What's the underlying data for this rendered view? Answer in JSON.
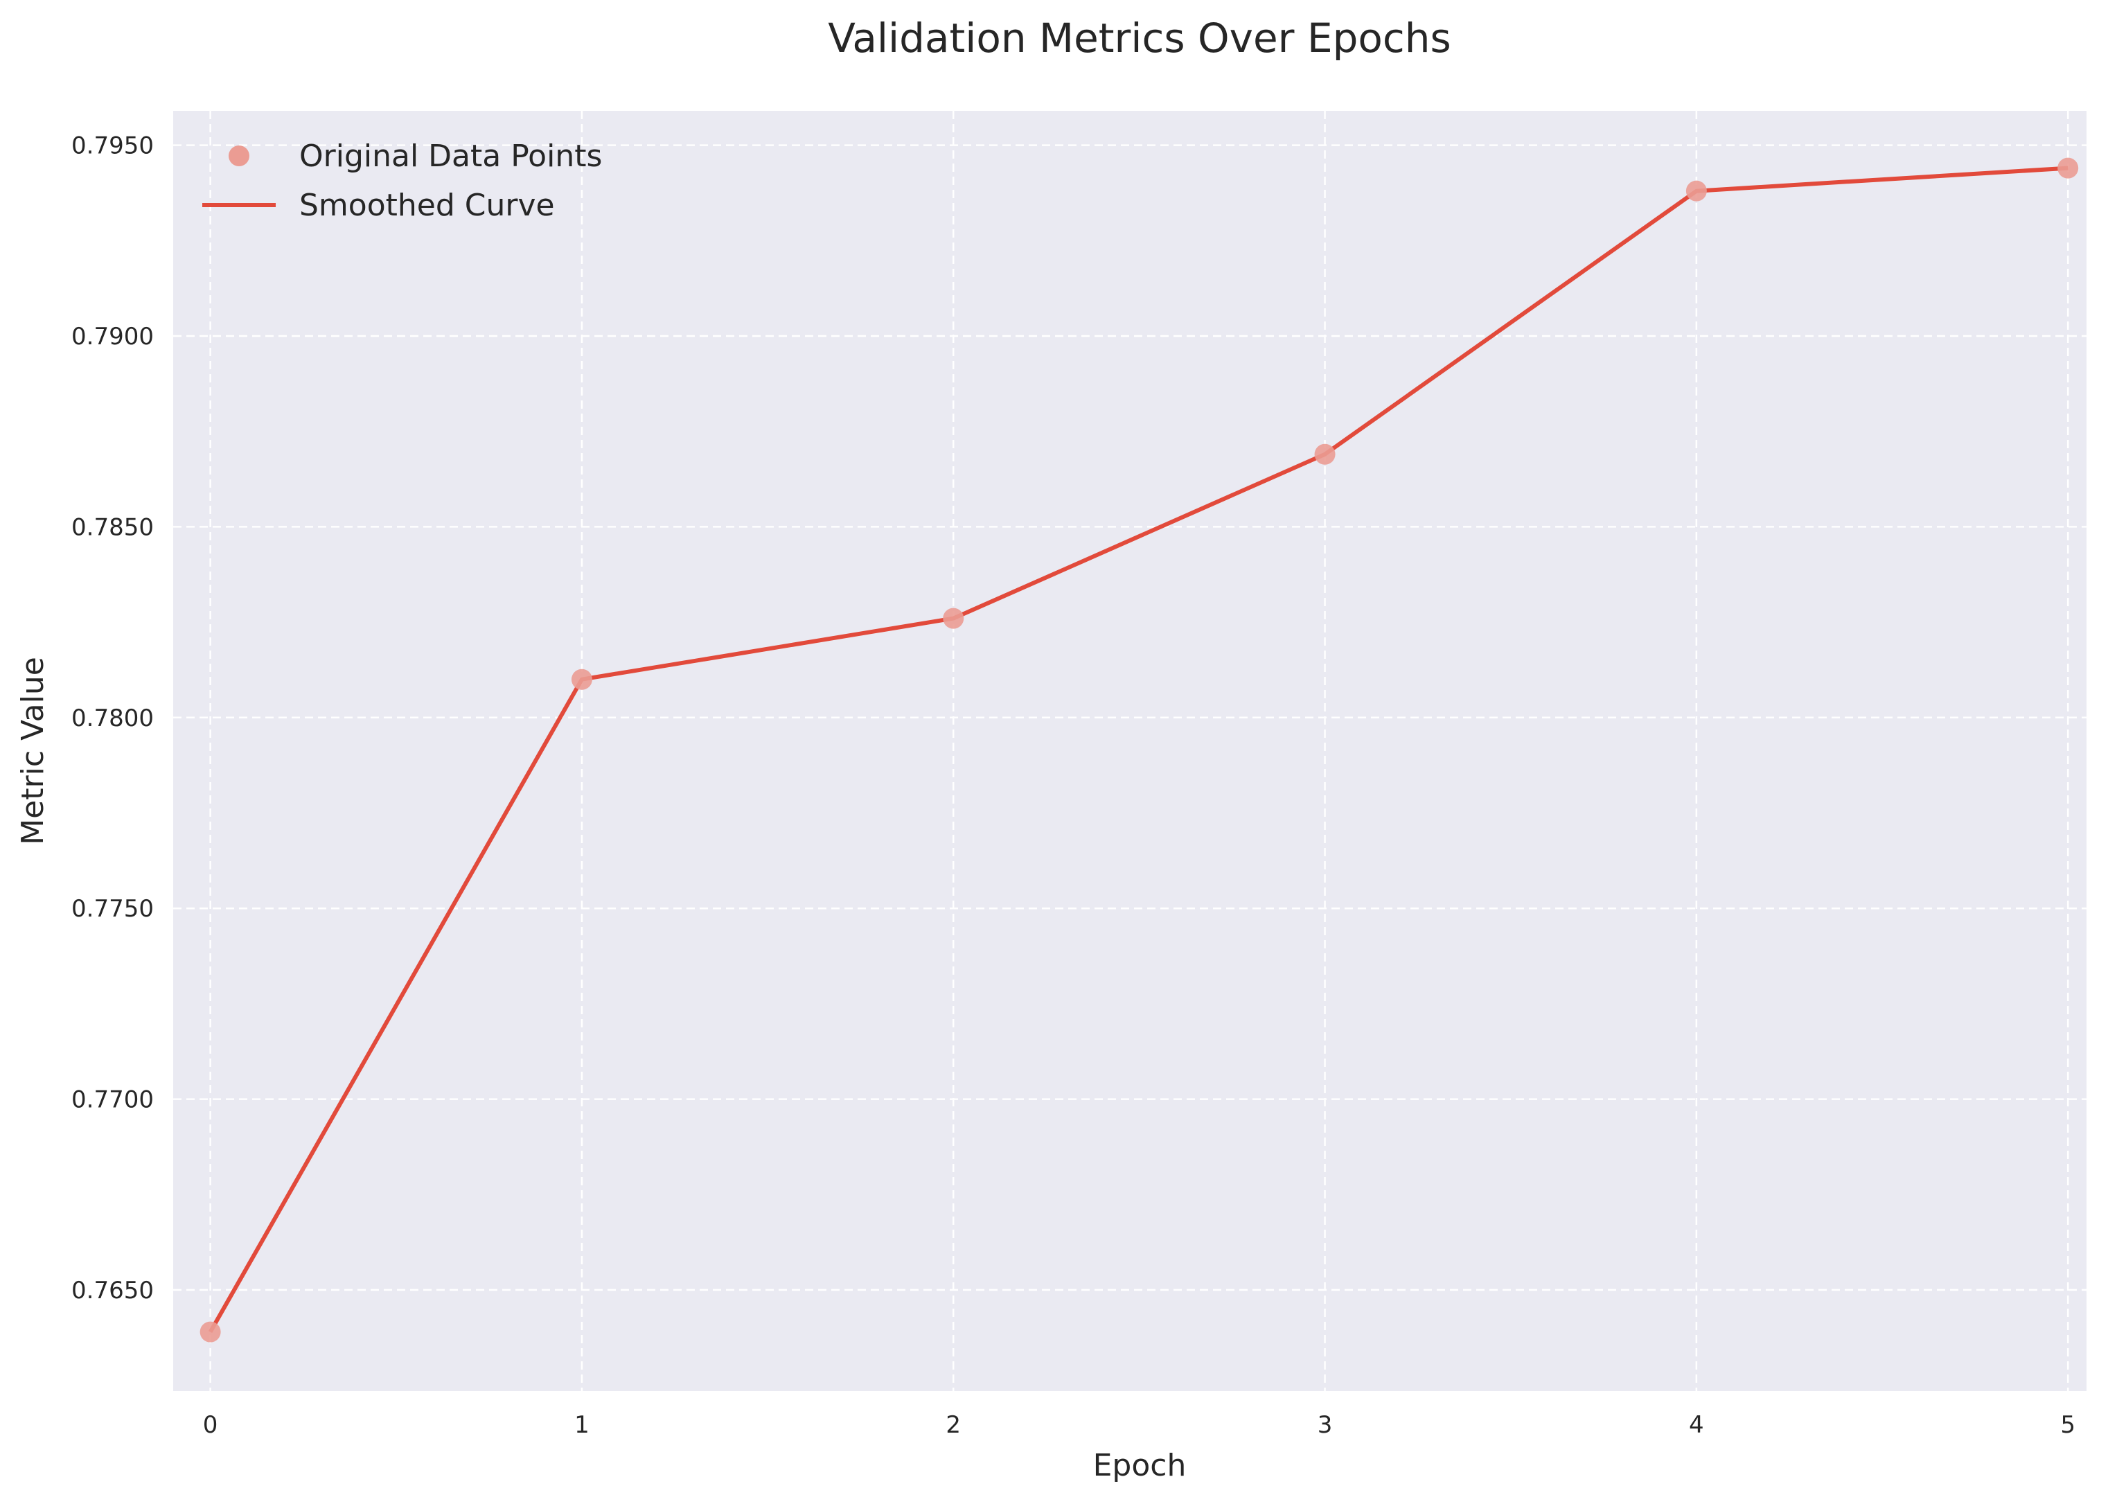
{
  "chart_data": {
    "type": "line",
    "title": "Validation Metrics Over Epochs",
    "xlabel": "Epoch",
    "ylabel": "Metric Value",
    "x": [
      0,
      1,
      2,
      3,
      4,
      5
    ],
    "series": [
      {
        "name": "Original Data Points",
        "kind": "scatter",
        "color": "#eb9c93",
        "values": [
          0.7639,
          0.781,
          0.7826,
          0.7869,
          0.7938,
          0.7944
        ]
      },
      {
        "name": "Smoothed Curve",
        "kind": "line",
        "color": "#e24a3b",
        "values": [
          0.7639,
          0.781,
          0.7826,
          0.7869,
          0.7938,
          0.7944
        ]
      }
    ],
    "xlim": [
      -0.1,
      5.05
    ],
    "ylim": [
      0.76235,
      0.7959
    ],
    "x_ticks": [
      "0",
      "1",
      "2",
      "3",
      "4",
      "5"
    ],
    "y_ticks": [
      "0.7650",
      "0.7700",
      "0.7750",
      "0.7800",
      "0.7850",
      "0.7900",
      "0.7950"
    ],
    "grid": true,
    "legend_position": "upper left",
    "background_color": "#eaeaf2"
  }
}
